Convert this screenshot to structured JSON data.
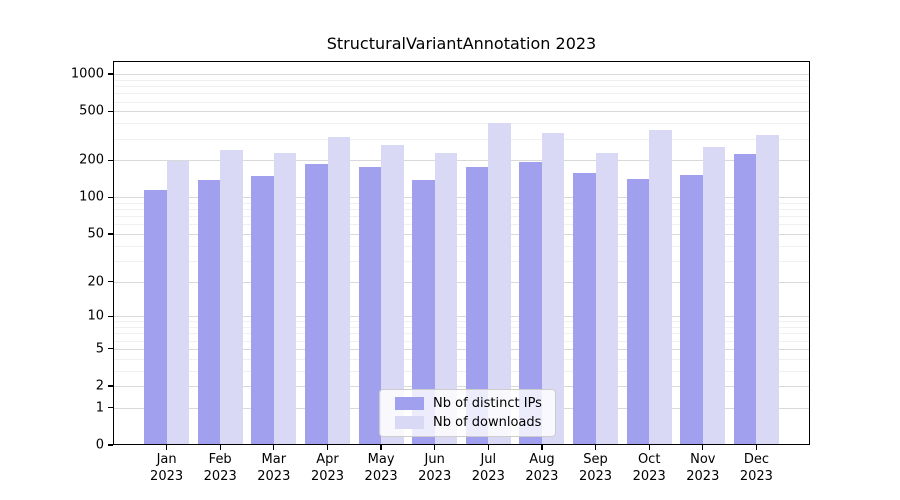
{
  "chart_data": {
    "type": "bar",
    "title": "StructuralVariantAnnotation 2023",
    "categories": [
      "Jan",
      "Feb",
      "Mar",
      "Apr",
      "May",
      "Jun",
      "Jul",
      "Aug",
      "Sep",
      "Oct",
      "Nov",
      "Dec"
    ],
    "category_year": "2023",
    "series": [
      {
        "name": "Nb of distinct IPs",
        "color": "#a0a0ee",
        "values": [
          114,
          138,
          148,
          185,
          178,
          138,
          177,
          195,
          158,
          142,
          151,
          225
        ]
      },
      {
        "name": "Nb of downloads",
        "color": "#d9d9f6",
        "values": [
          196,
          242,
          230,
          310,
          266,
          230,
          400,
          334,
          230,
          350,
          257,
          324
        ]
      }
    ],
    "yscale": "log1p",
    "ylim": [
      0,
      1276
    ],
    "y_ticks": [
      0,
      1,
      2,
      5,
      10,
      20,
      50,
      100,
      200,
      500,
      1000
    ],
    "y_minor_ticks": [
      3,
      4,
      6,
      7,
      8,
      9,
      30,
      40,
      60,
      70,
      80,
      90,
      300,
      400,
      600,
      700,
      800,
      900
    ],
    "grid": true,
    "legend_position": "lower center",
    "colors": {
      "major_grid": "#d9d9d9",
      "minor_grid": "#f0f0f0",
      "axis": "#000000",
      "background": "#ffffff",
      "text": "#000000"
    }
  }
}
